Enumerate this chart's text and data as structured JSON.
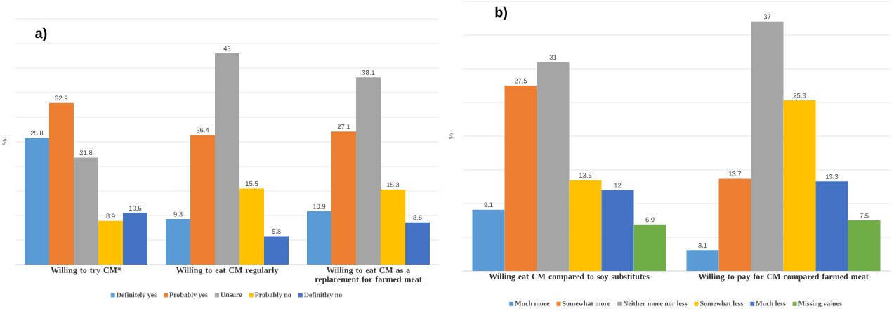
{
  "chart_data": [
    {
      "type": "bar",
      "title": "a)",
      "ylabel": "%",
      "categories": [
        "Willing to try CM*",
        "Willing to eat CM regularly",
        "Willing to eat CM as a replacement for farmed meat"
      ],
      "series": [
        {
          "name": "Definitely yes",
          "color": "#5b9bd5",
          "values": [
            25.8,
            9.3,
            10.9
          ]
        },
        {
          "name": "Probably yes",
          "color": "#ed7d31",
          "values": [
            32.9,
            26.4,
            27.1
          ]
        },
        {
          "name": "Unsure",
          "color": "#a5a5a5",
          "values": [
            21.8,
            43,
            38.1
          ]
        },
        {
          "name": "Probably no",
          "color": "#ffc000",
          "values": [
            8.9,
            15.5,
            15.3
          ]
        },
        {
          "name": "Definitley no",
          "color": "#4472c4",
          "values": [
            10.5,
            5.8,
            8.6
          ]
        }
      ],
      "ylim": [
        0,
        50
      ],
      "yticks": [
        {
          "value": 0,
          "label": null
        },
        {
          "value": 5,
          "label": null
        },
        {
          "value": 10,
          "label": null
        },
        {
          "value": 15,
          "label": null
        },
        {
          "value": 20,
          "label": null
        },
        {
          "value": 25,
          "label": null
        },
        {
          "value": 30,
          "label": null
        },
        {
          "value": 35,
          "label": null
        },
        {
          "value": 40,
          "label": null
        },
        {
          "value": 45,
          "label": null
        },
        {
          "value": 50,
          "label": null
        }
      ],
      "grid": "y",
      "legend": "bottom",
      "data_labels": true,
      "tick_labels": "x"
    },
    {
      "type": "bar",
      "title": "b)",
      "ylabel": "%",
      "categories": [
        "Willing eat CM compared to soy substitutes",
        "Willing to pay for CM compared farmed meat"
      ],
      "series": [
        {
          "name": "Much more",
          "color": "#5b9bd5",
          "values": [
            9.1,
            3.1
          ]
        },
        {
          "name": "Somewhat more",
          "color": "#ed7d31",
          "values": [
            27.5,
            13.7
          ]
        },
        {
          "name": "Neither more nor less",
          "color": "#a5a5a5",
          "values": [
            31,
            37
          ]
        },
        {
          "name": "Somewhat less",
          "color": "#ffc000",
          "values": [
            13.5,
            25.3
          ]
        },
        {
          "name": "Much less",
          "color": "#4472c4",
          "values": [
            12,
            13.3
          ]
        },
        {
          "name": "Missing values",
          "color": "#70ad47",
          "values": [
            6.9,
            7.5
          ]
        }
      ],
      "ylim": [
        0,
        40
      ],
      "yticks": [
        {
          "value": 0,
          "label": null
        },
        {
          "value": 5,
          "label": null
        },
        {
          "value": 10,
          "label": null
        },
        {
          "value": 15,
          "label": null
        },
        {
          "value": 20,
          "label": null
        },
        {
          "value": 25,
          "label": null
        },
        {
          "value": 30,
          "label": null
        },
        {
          "value": 35,
          "label": null
        },
        {
          "value": 40,
          "label": null
        }
      ],
      "grid": "y",
      "legend": "bottom",
      "data_labels": true,
      "tick_labels": "x"
    }
  ]
}
